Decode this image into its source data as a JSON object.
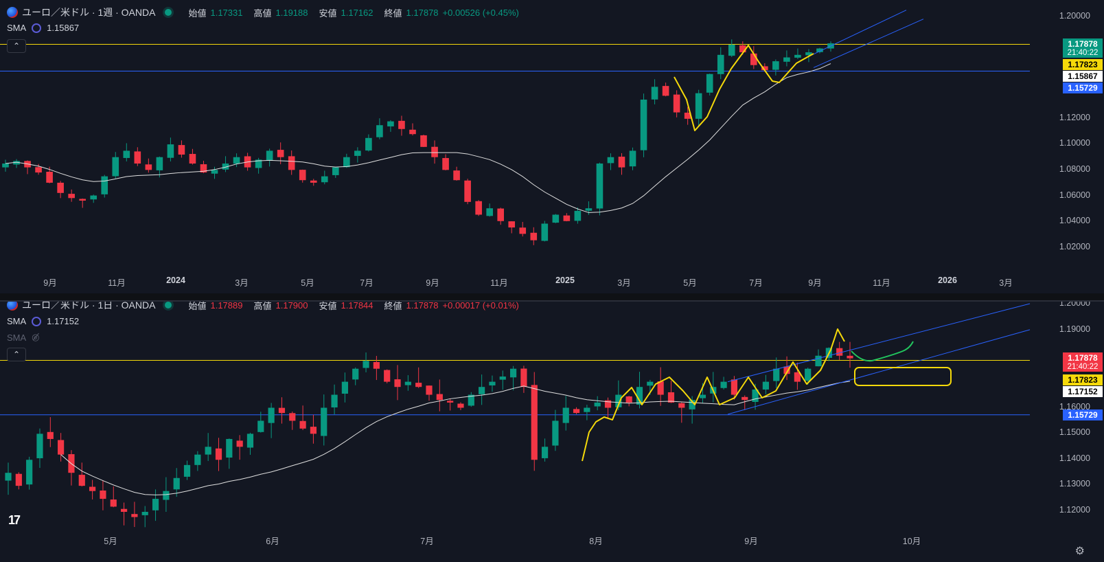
{
  "top": {
    "symbol": "ユーロ／米ドル · 1週 · OANDA",
    "ohlc": [
      {
        "label": "始値",
        "value": "1.17331"
      },
      {
        "label": "高値",
        "value": "1.19188"
      },
      {
        "label": "安値",
        "value": "1.17162"
      },
      {
        "label": "終値",
        "value": "1.17878"
      }
    ],
    "change": "+0.00526 (+0.45%)",
    "sma_label": "SMA",
    "sma_value": "1.15867",
    "collapse_glyph": "⌃",
    "y_ticks": [
      "1.20000",
      "1.12000",
      "1.10000",
      "1.08000",
      "1.06000",
      "1.04000",
      "1.02000"
    ],
    "price_tags": [
      {
        "text": "1.17878",
        "sub": "21:40:22",
        "bg": "#089981",
        "fg": "#ffffff"
      },
      {
        "text": "1.17823",
        "bg": "#f5d90a",
        "fg": "#000000"
      },
      {
        "text": "1.15867",
        "bg": "#ffffff",
        "fg": "#000000"
      },
      {
        "text": "1.15729",
        "bg": "#2962ff",
        "fg": "#ffffff"
      }
    ],
    "x_ticks": [
      {
        "t": "9月",
        "bold": false
      },
      {
        "t": "11月",
        "bold": false
      },
      {
        "t": "2024",
        "bold": true
      },
      {
        "t": "3月",
        "bold": false
      },
      {
        "t": "5月",
        "bold": false
      },
      {
        "t": "7月",
        "bold": false
      },
      {
        "t": "9月",
        "bold": false
      },
      {
        "t": "11月",
        "bold": false
      },
      {
        "t": "2025",
        "bold": true
      },
      {
        "t": "3月",
        "bold": false
      },
      {
        "t": "5月",
        "bold": false
      },
      {
        "t": "7月",
        "bold": false
      },
      {
        "t": "9月",
        "bold": false
      },
      {
        "t": "11月",
        "bold": false
      },
      {
        "t": "2026",
        "bold": true
      },
      {
        "t": "3月",
        "bold": false
      }
    ]
  },
  "bottom": {
    "symbol": "ユーロ／米ドル · 1日 · OANDA",
    "ohlc": [
      {
        "label": "始値",
        "value": "1.17889"
      },
      {
        "label": "高値",
        "value": "1.17900"
      },
      {
        "label": "安値",
        "value": "1.17844"
      },
      {
        "label": "終値",
        "value": "1.17878"
      }
    ],
    "change": "+0.00017 (+0.01%)",
    "sma_label": "SMA",
    "sma_value": "1.17152",
    "sma2_label": "SMA",
    "collapse_glyph": "⌃",
    "y_ticks": [
      "1.20000",
      "1.19000",
      "1.16000",
      "1.15000",
      "1.14000",
      "1.13000",
      "1.12000"
    ],
    "price_tags": [
      {
        "text": "1.17878",
        "sub": "21:40:22",
        "bg": "#f23645",
        "fg": "#ffffff"
      },
      {
        "text": "1.17823",
        "bg": "#f5d90a",
        "fg": "#000000"
      },
      {
        "text": "1.17152",
        "bg": "#ffffff",
        "fg": "#000000"
      },
      {
        "text": "1.15729",
        "bg": "#2962ff",
        "fg": "#ffffff"
      }
    ],
    "x_ticks": [
      {
        "t": "5月",
        "bold": false
      },
      {
        "t": "6月",
        "bold": false
      },
      {
        "t": "7月",
        "bold": false
      },
      {
        "t": "8月",
        "bold": false
      },
      {
        "t": "9月",
        "bold": false
      },
      {
        "t": "10月",
        "bold": false
      }
    ],
    "logo": "17"
  },
  "colors": {
    "up": "#089981",
    "down": "#f23645",
    "yellow": "#f5d90a",
    "blue": "#2962ff",
    "sma": "#e0e0e0",
    "green": "#22c55e"
  },
  "chart_data": [
    {
      "type": "candlestick",
      "title": "ユーロ／米ドル · 1週 · OANDA",
      "ylim": [
        1.02,
        1.2
      ],
      "series": [
        {
          "values": [
            1.085,
            1.087,
            1.082,
            1.078,
            1.07,
            1.062,
            1.058,
            1.056,
            1.06,
            1.075,
            1.09,
            1.095,
            1.085,
            1.08,
            1.09,
            1.1,
            1.092,
            1.085,
            1.078,
            1.08,
            1.085,
            1.09,
            1.082,
            1.088,
            1.095,
            1.09,
            1.08,
            1.072,
            1.07,
            1.075,
            1.082,
            1.09,
            1.095,
            1.105,
            1.115,
            1.118,
            1.112,
            1.108,
            1.098,
            1.09,
            1.08,
            1.072,
            1.055,
            1.045,
            1.05,
            1.04,
            1.035,
            1.03,
            1.025,
            1.038,
            1.045,
            1.04,
            1.048,
            1.05,
            1.085,
            1.09,
            1.082,
            1.095,
            1.135,
            1.145,
            1.138,
            1.125,
            1.12,
            1.14,
            1.155,
            1.17,
            1.178,
            1.172,
            1.162,
            1.158,
            1.165,
            1.168,
            1.17,
            1.172,
            1.175,
            1.179
          ]
        }
      ]
    },
    {
      "type": "candlestick",
      "title": "ユーロ／米ドル · 1日 · OANDA",
      "ylim": [
        1.11,
        1.2
      ],
      "series": [
        {
          "values": [
            1.135,
            1.13,
            1.14,
            1.15,
            1.148,
            1.142,
            1.135,
            1.13,
            1.128,
            1.125,
            1.122,
            1.12,
            1.118,
            1.12,
            1.125,
            1.128,
            1.133,
            1.138,
            1.142,
            1.145,
            1.14,
            1.148,
            1.145,
            1.15,
            1.155,
            1.16,
            1.158,
            1.155,
            1.152,
            1.15,
            1.16,
            1.165,
            1.17,
            1.175,
            1.178,
            1.175,
            1.17,
            1.168,
            1.17,
            1.168,
            1.165,
            1.163,
            1.162,
            1.16,
            1.165,
            1.168,
            1.17,
            1.172,
            1.175,
            1.168,
            1.14,
            1.145,
            1.155,
            1.16,
            1.158,
            1.16,
            1.162,
            1.16,
            1.165,
            1.162,
            1.168,
            1.17,
            1.165,
            1.162,
            1.16,
            1.163,
            1.165,
            1.168,
            1.17,
            1.165,
            1.163,
            1.167,
            1.17,
            1.175,
            1.173,
            1.17,
            1.175,
            1.18,
            1.183,
            1.18,
            1.179
          ]
        }
      ]
    }
  ]
}
